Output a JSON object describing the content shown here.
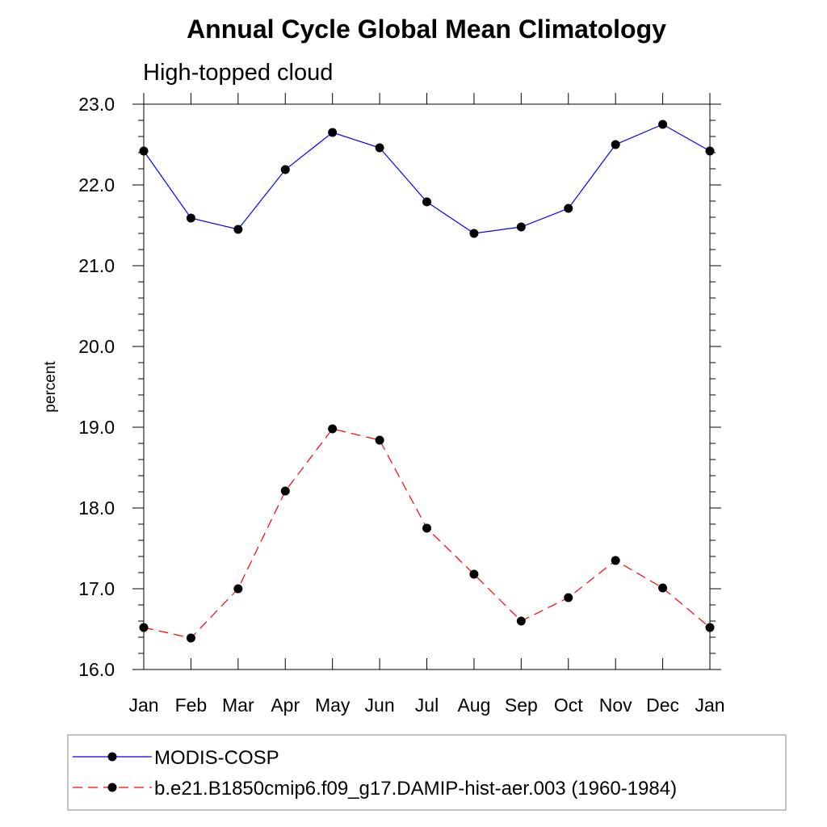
{
  "chart_data": {
    "type": "line",
    "title": "Annual Cycle Global Mean Climatology",
    "subtitle": "High-topped cloud",
    "xlabel": "",
    "ylabel": "percent",
    "categories": [
      "Jan",
      "Feb",
      "Mar",
      "Apr",
      "May",
      "Jun",
      "Jul",
      "Aug",
      "Sep",
      "Oct",
      "Nov",
      "Dec",
      "Jan"
    ],
    "ylim": [
      16.0,
      23.0
    ],
    "yticks": [
      "16.0",
      "17.0",
      "18.0",
      "19.0",
      "20.0",
      "21.0",
      "22.0",
      "23.0"
    ],
    "grid": false,
    "legend_position": "bottom",
    "series": [
      {
        "name": "MODIS-COSP",
        "color": "#0000ff",
        "line_style": "solid",
        "marker": "filled-circle",
        "values": [
          22.42,
          21.59,
          21.45,
          22.19,
          22.65,
          22.46,
          21.79,
          21.4,
          21.48,
          21.71,
          22.5,
          22.75,
          22.42
        ]
      },
      {
        "name": "b.e21.B1850cmip6.f09_g17.DAMIP-hist-aer.003 (1960-1984)",
        "color": "#ff0000",
        "line_style": "dashed",
        "marker": "filled-circle",
        "values": [
          16.52,
          16.39,
          17.0,
          18.21,
          18.98,
          18.84,
          17.75,
          17.18,
          16.6,
          16.89,
          17.35,
          17.01,
          16.52
        ]
      }
    ]
  }
}
